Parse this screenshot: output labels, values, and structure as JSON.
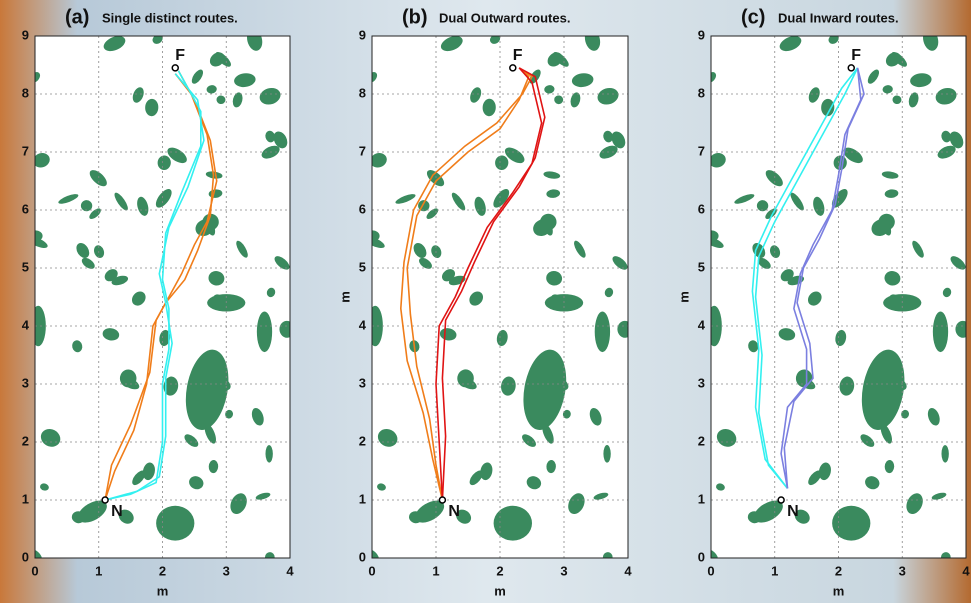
{
  "chart_data": [
    {
      "type": "line",
      "panel": "(a)",
      "title": "Single distinct routes.",
      "xlabel": "m",
      "xlim": [
        0,
        4
      ],
      "ylim": [
        0,
        9
      ],
      "xticks": [
        0,
        1,
        2,
        3,
        4
      ],
      "yticks": [
        0,
        1,
        2,
        3,
        4,
        5,
        6,
        7,
        8,
        9
      ],
      "grid": true,
      "markers": [
        {
          "label": "N",
          "x": 1.1,
          "y": 1.0
        },
        {
          "label": "F",
          "x": 2.2,
          "y": 8.45
        }
      ],
      "series": [
        {
          "color": "#f07d1a",
          "x": [
            1.1,
            1.2,
            1.5,
            1.8,
            1.9,
            2.1,
            2.3,
            2.5,
            2.7,
            2.85,
            2.75,
            2.5,
            2.25
          ],
          "values": [
            1.0,
            1.6,
            2.3,
            3.2,
            4.1,
            4.5,
            4.9,
            5.4,
            5.8,
            6.5,
            7.2,
            7.9,
            8.4
          ]
        },
        {
          "color": "#f07d1a",
          "x": [
            1.1,
            1.25,
            1.55,
            1.75,
            1.85,
            2.05,
            2.35,
            2.55,
            2.75,
            2.8,
            2.7,
            2.45,
            2.2
          ],
          "values": [
            1.0,
            1.5,
            2.2,
            3.0,
            4.0,
            4.4,
            4.8,
            5.3,
            5.9,
            6.6,
            7.3,
            8.0,
            8.35
          ]
        },
        {
          "color": "#33f0f0",
          "x": [
            1.1,
            1.5,
            1.9,
            2.0,
            2.0,
            2.1,
            2.1,
            2.0,
            2.05,
            2.3,
            2.6,
            2.6,
            2.25
          ],
          "values": [
            1.0,
            1.1,
            1.3,
            2.0,
            3.0,
            3.6,
            4.3,
            4.8,
            5.6,
            6.3,
            7.1,
            7.7,
            8.4
          ]
        },
        {
          "color": "#33f0f0",
          "x": [
            1.1,
            1.6,
            1.95,
            2.05,
            2.05,
            2.15,
            2.05,
            1.95,
            2.1,
            2.4,
            2.65,
            2.55,
            2.2
          ],
          "values": [
            1.0,
            1.15,
            1.4,
            2.1,
            3.1,
            3.7,
            4.4,
            4.9,
            5.7,
            6.4,
            7.2,
            7.9,
            8.35
          ]
        }
      ]
    },
    {
      "type": "line",
      "panel": "(b)",
      "title": "Dual Outward routes.",
      "xlabel": "m",
      "ylabel": "m",
      "xlim": [
        0,
        4
      ],
      "ylim": [
        0,
        9
      ],
      "xticks": [
        0,
        1,
        2,
        3,
        4
      ],
      "yticks": [
        0,
        1,
        2,
        3,
        4,
        5,
        6,
        7,
        8,
        9
      ],
      "grid": true,
      "markers": [
        {
          "label": "N",
          "x": 1.1,
          "y": 1.0
        },
        {
          "label": "F",
          "x": 2.2,
          "y": 8.45
        }
      ],
      "series": [
        {
          "color": "#f07d1a",
          "x": [
            1.1,
            1.0,
            0.9,
            0.7,
            0.6,
            0.55,
            0.7,
            1.0,
            1.5,
            2.0,
            2.3,
            2.45,
            2.3
          ],
          "values": [
            1.0,
            1.6,
            2.4,
            3.3,
            4.2,
            5.0,
            5.9,
            6.5,
            7.0,
            7.4,
            7.9,
            8.3,
            8.45
          ]
        },
        {
          "color": "#f07d1a",
          "x": [
            1.1,
            0.95,
            0.8,
            0.55,
            0.45,
            0.5,
            0.65,
            0.95,
            1.45,
            1.95,
            2.35,
            2.5,
            2.3
          ],
          "values": [
            1.0,
            1.7,
            2.5,
            3.4,
            4.3,
            5.1,
            6.0,
            6.6,
            7.1,
            7.5,
            8.0,
            8.3,
            8.45
          ]
        },
        {
          "color": "#e01414",
          "x": [
            1.1,
            1.05,
            1.0,
            1.05,
            1.3,
            1.5,
            1.8,
            2.2,
            2.5,
            2.65,
            2.5,
            2.3
          ],
          "values": [
            1.0,
            2.0,
            3.0,
            4.0,
            4.5,
            5.0,
            5.7,
            6.3,
            6.8,
            7.5,
            8.2,
            8.45
          ]
        },
        {
          "color": "#e01414",
          "x": [
            1.1,
            1.15,
            1.1,
            1.15,
            1.4,
            1.6,
            1.9,
            2.3,
            2.55,
            2.7,
            2.55,
            2.3
          ],
          "values": [
            1.0,
            2.1,
            3.1,
            4.1,
            4.6,
            5.1,
            5.8,
            6.4,
            6.9,
            7.6,
            8.3,
            8.45
          ]
        }
      ]
    },
    {
      "type": "line",
      "panel": "(c)",
      "title": "Dual Inward routes.",
      "xlabel": "m",
      "ylabel": "m",
      "xlim": [
        0,
        4
      ],
      "ylim": [
        0,
        9
      ],
      "xticks": [
        0,
        1,
        2,
        3,
        4
      ],
      "yticks": [
        0,
        1,
        2,
        3,
        4,
        5,
        6,
        7,
        8,
        9
      ],
      "grid": true,
      "markers": [
        {
          "label": "N",
          "x": 1.1,
          "y": 1.0
        },
        {
          "label": "F",
          "x": 2.2,
          "y": 8.45
        }
      ],
      "series": [
        {
          "color": "#33f0f0",
          "x": [
            1.2,
            0.9,
            0.75,
            0.8,
            0.7,
            0.75,
            1.0,
            1.4,
            1.8,
            2.1,
            2.3
          ],
          "values": [
            1.2,
            1.6,
            2.5,
            3.5,
            4.5,
            5.2,
            5.8,
            6.6,
            7.4,
            8.0,
            8.45
          ]
        },
        {
          "color": "#33f0f0",
          "x": [
            1.2,
            0.85,
            0.7,
            0.75,
            0.65,
            0.7,
            0.95,
            1.35,
            1.75,
            2.05,
            2.3
          ],
          "values": [
            1.2,
            1.7,
            2.6,
            3.6,
            4.6,
            5.3,
            5.9,
            6.7,
            7.5,
            8.1,
            8.45
          ]
        },
        {
          "color": "#7b7fe0",
          "x": [
            1.2,
            1.1,
            1.2,
            1.5,
            1.5,
            1.3,
            1.4,
            1.6,
            1.9,
            2.0,
            2.1,
            2.35,
            2.3
          ],
          "values": [
            1.2,
            1.8,
            2.6,
            3.0,
            3.6,
            4.3,
            4.9,
            5.4,
            6.0,
            6.6,
            7.3,
            7.9,
            8.45
          ]
        },
        {
          "color": "#7b7fe0",
          "x": [
            1.2,
            1.15,
            1.3,
            1.6,
            1.55,
            1.35,
            1.45,
            1.7,
            1.95,
            2.05,
            2.15,
            2.4,
            2.3
          ],
          "values": [
            1.2,
            1.9,
            2.7,
            3.1,
            3.7,
            4.4,
            5.0,
            5.5,
            6.1,
            6.7,
            7.4,
            8.0,
            8.45
          ]
        }
      ]
    }
  ]
}
